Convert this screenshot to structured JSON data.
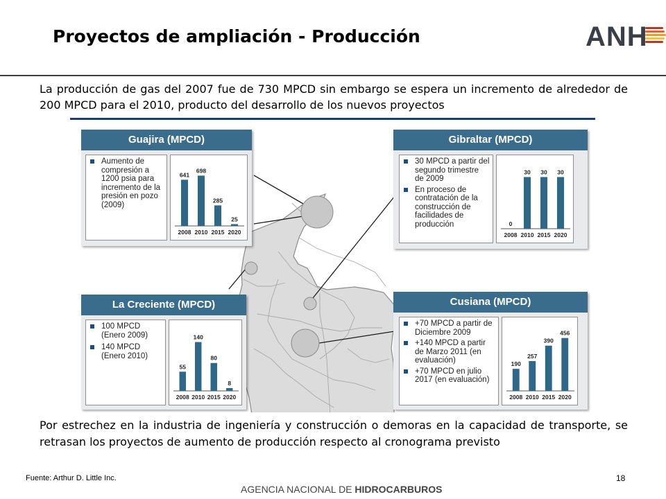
{
  "slide": {
    "title": "Proyectos de ampliación - Producción",
    "logo_text": "ANH",
    "logo_stripe_colors": [
      "#c8321e",
      "#e8622a",
      "#f39a2e",
      "#f7c232",
      "#c8321e"
    ],
    "intro": "La producción de gas del 2007 fue de 730 MPCD sin embargo se espera un incremento de alrededor de 200 MPCD para el 2010, producto del desarrollo de los nuevos proyectos",
    "conclusion": "Por estrechez en la industria de ingeniería y construcción o demoras en la capacidad de transporte, se retrasan los proyectos de aumento de producción respecto al cronograma previsto",
    "source": "Fuente: Arthur D. Little Inc.",
    "page_number": "18",
    "footer_agency_light": "AGENCIA NACIONAL DE",
    "footer_agency_bold": "HIDROCARBUROS"
  },
  "colors": {
    "panel_header": "#3a6d8c",
    "bar": "#2e6787",
    "map_fill": "#dcdcdc",
    "map_border": "#8a8a8a",
    "highlight": "#c8c8c8",
    "leader_line": "#1a1a1a"
  },
  "panels": {
    "guajira": {
      "title": "Guajira (MPCD)",
      "notes": [
        "Aumento de compresión a 1200 psia para incremento de la presión en pozo (2009)"
      ]
    },
    "gibraltar": {
      "title": "Gibraltar (MPCD)",
      "notes": [
        "30 MPCD a partir del segundo trimestre de 2009",
        "En proceso de contratación de la construcción de facilidades de producción"
      ]
    },
    "creciente": {
      "title": "La Creciente (MPCD)",
      "notes": [
        "100 MPCD (Enero 2009)",
        "140 MPCD (Enero 2010)"
      ]
    },
    "cusiana": {
      "title": "Cusiana (MPCD)",
      "notes": [
        "+70 MPCD a partir de Diciembre 2009",
        "+140 MPCD a partir de Marzo 2011 (en evaluación)",
        "+70 MPCD en julio 2017 (en evaluación)"
      ]
    }
  },
  "chart_data": [
    {
      "id": "guajira",
      "type": "bar",
      "title": "Guajira (MPCD)",
      "categories": [
        "2008",
        "2010",
        "2015",
        "2020"
      ],
      "values": [
        641,
        698,
        285,
        25
      ],
      "ylim": [
        0,
        750
      ]
    },
    {
      "id": "gibraltar",
      "type": "bar",
      "title": "Gibraltar (MPCD)",
      "categories": [
        "2008",
        "2010",
        "2015",
        "2020"
      ],
      "values": [
        0,
        30,
        30,
        30
      ],
      "ylim": [
        0,
        33
      ]
    },
    {
      "id": "creciente",
      "type": "bar",
      "title": "La Creciente (MPCD)",
      "categories": [
        "2008",
        "2010",
        "2015",
        "2020"
      ],
      "values": [
        55,
        140,
        80,
        8
      ],
      "ylim": [
        0,
        155
      ]
    },
    {
      "id": "cusiana",
      "type": "bar",
      "title": "Cusiana (MPCD)",
      "categories": [
        "2008",
        "2010",
        "2015",
        "2020"
      ],
      "values": [
        190,
        257,
        390,
        456
      ],
      "ylim": [
        0,
        490
      ]
    }
  ]
}
